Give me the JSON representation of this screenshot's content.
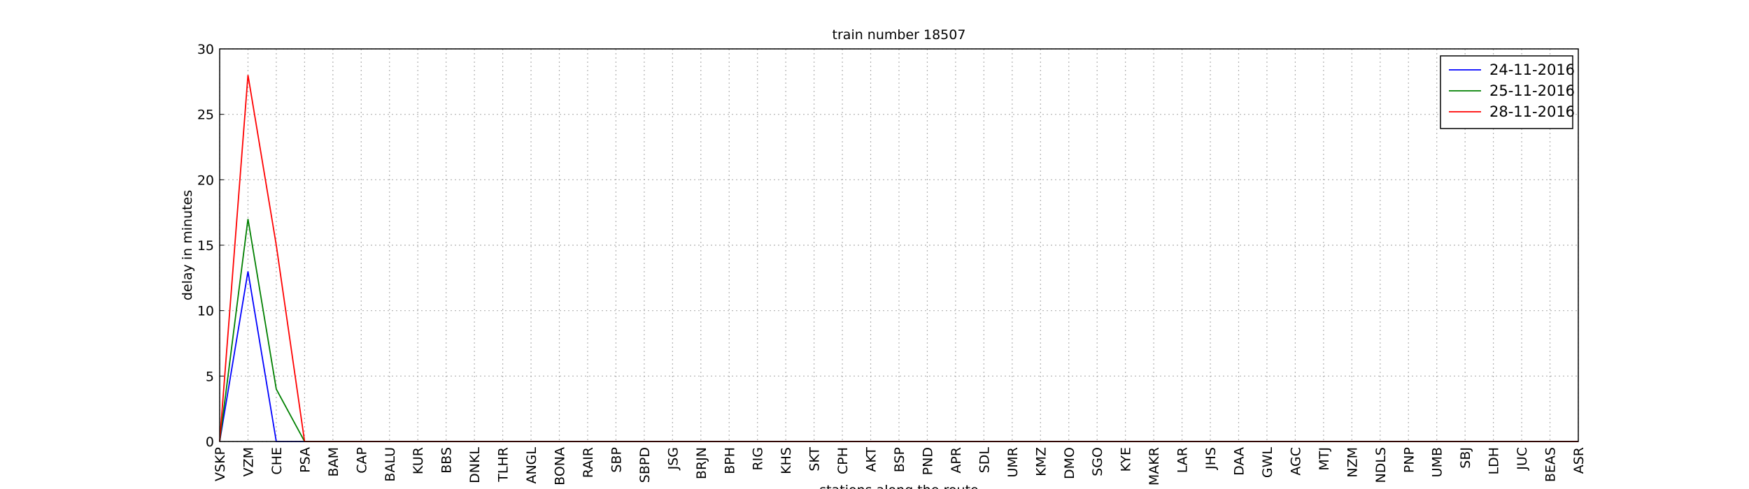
{
  "chart_data": {
    "type": "line",
    "title": "train number 18507",
    "x_label": "stations along the route",
    "y_label": "delay in minutes",
    "categories": [
      "VSKP",
      "VZM",
      "CHE",
      "PSA",
      "BAM",
      "CAP",
      "BALU",
      "KUR",
      "BBS",
      "DNKL",
      "TLHR",
      "ANGL",
      "BONA",
      "RAIR",
      "SBP",
      "SBPD",
      "JSG",
      "BRJN",
      "BPH",
      "RIG",
      "KHS",
      "SKT",
      "CPH",
      "AKT",
      "BSP",
      "PND",
      "APR",
      "SDL",
      "UMR",
      "KMZ",
      "DMO",
      "SGO",
      "KYE",
      "MAKR",
      "LAR",
      "JHS",
      "DAA",
      "GWL",
      "AGC",
      "MTJ",
      "NZM",
      "NDLS",
      "PNP",
      "UMB",
      "SBJ",
      "LDH",
      "JUC",
      "BEAS",
      "ASR"
    ],
    "series": [
      {
        "name": "24-11-2016",
        "color": "#0000ff",
        "values": [
          0,
          13,
          0,
          0,
          0,
          0,
          0,
          0,
          0,
          0,
          0,
          0,
          0,
          0,
          0,
          0,
          0,
          0,
          0,
          0,
          0,
          0,
          0,
          0,
          0,
          0,
          0,
          0,
          0,
          0,
          0,
          0,
          0,
          0,
          0,
          0,
          0,
          0,
          0,
          0,
          0,
          0,
          0,
          0,
          0,
          0,
          0,
          0,
          0
        ]
      },
      {
        "name": "25-11-2016",
        "color": "#008000",
        "values": [
          0,
          17,
          4,
          0,
          0,
          0,
          0,
          0,
          0,
          0,
          0,
          0,
          0,
          0,
          0,
          0,
          0,
          0,
          0,
          0,
          0,
          0,
          0,
          0,
          0,
          0,
          0,
          0,
          0,
          0,
          0,
          0,
          0,
          0,
          0,
          0,
          0,
          0,
          0,
          0,
          0,
          0,
          0,
          0,
          0,
          0,
          0,
          0,
          0
        ]
      },
      {
        "name": "28-11-2016",
        "color": "#ff0000",
        "values": [
          0,
          28,
          15,
          0,
          0,
          0,
          0,
          0,
          0,
          0,
          0,
          0,
          0,
          0,
          0,
          0,
          0,
          0,
          0,
          0,
          0,
          0,
          0,
          0,
          0,
          0,
          0,
          0,
          0,
          0,
          0,
          0,
          0,
          0,
          0,
          0,
          0,
          0,
          0,
          0,
          0,
          0,
          0,
          0,
          0,
          0,
          0,
          0,
          0
        ]
      }
    ],
    "ylim": [
      0,
      30
    ],
    "yticks": [
      0,
      5,
      10,
      15,
      20,
      25,
      30
    ],
    "grid": true,
    "legend": "upper right"
  }
}
